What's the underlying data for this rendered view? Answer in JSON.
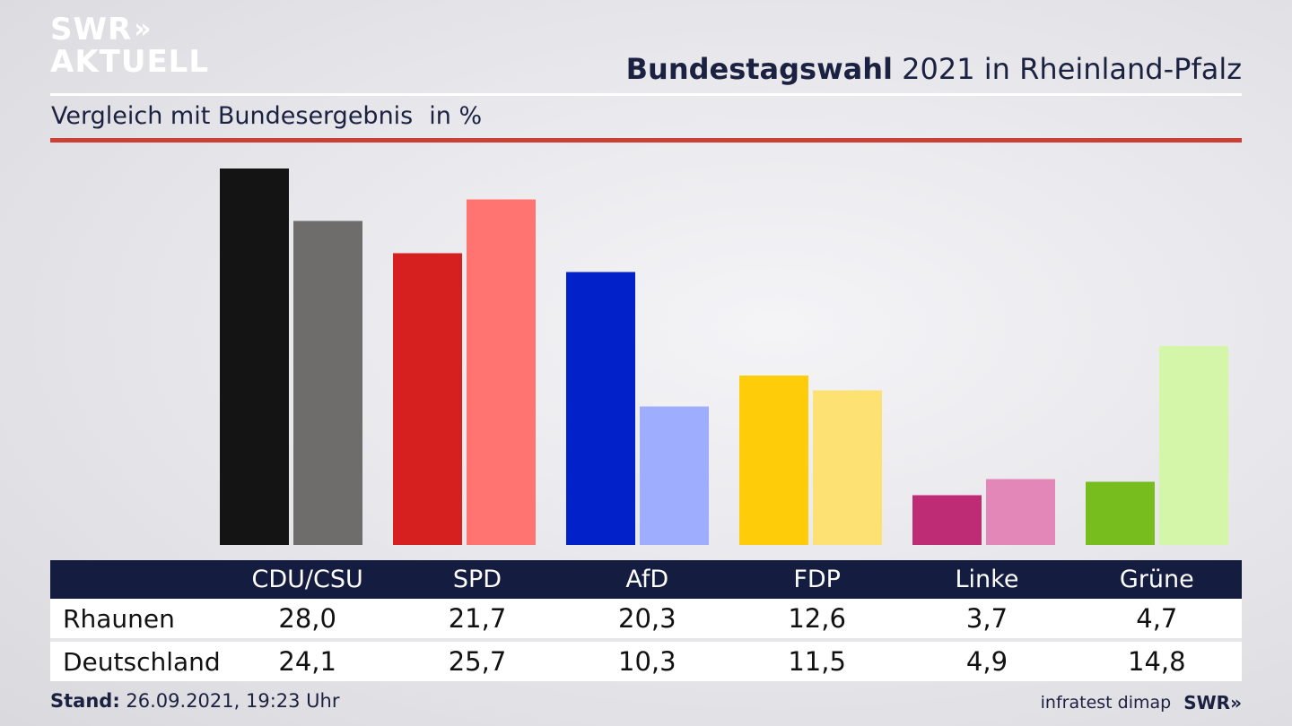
{
  "brand": {
    "line1": "SWR",
    "line1_chevrons": "»",
    "line2": "AKTUELL"
  },
  "header": {
    "title_bold": "Bundestagswahl",
    "title_rest": " 2021 in Rheinland-Pfalz"
  },
  "subtitle": {
    "text": "Vergleich mit Bundesergebnis",
    "unit": "in %"
  },
  "footer": {
    "stand_label": "Stand:",
    "stand_value": " 26.09.2021, 19:23 Uhr",
    "source": "infratest dimap",
    "logo": "SWR»"
  },
  "colors": {
    "rule_red": "#cc3f35",
    "table_header": "#141c3f",
    "CDU/CSU": [
      "#141414",
      "#6f6d6b"
    ],
    "SPD": [
      "#d61f1f",
      "#ff7370"
    ],
    "AfD": [
      "#0321c8",
      "#9fadff"
    ],
    "FDP": [
      "#ffcc0a",
      "#fde173"
    ],
    "Linke": [
      "#bd2c74",
      "#e287b8"
    ],
    "Grüne": [
      "#78bd1e",
      "#d4f6a8"
    ]
  },
  "chart_data": {
    "type": "bar",
    "categories": [
      "CDU/CSU",
      "SPD",
      "AfD",
      "FDP",
      "Linke",
      "Grüne"
    ],
    "series": [
      {
        "name": "Rhaunen",
        "values": [
          28.0,
          21.7,
          20.3,
          12.6,
          3.7,
          4.7
        ],
        "labels": [
          "28,0",
          "21,7",
          "20,3",
          "12,6",
          "3,7",
          "4,7"
        ]
      },
      {
        "name": "Deutschland",
        "values": [
          24.1,
          25.7,
          10.3,
          11.5,
          4.9,
          14.8
        ],
        "labels": [
          "24,1",
          "25,7",
          "10,3",
          "11,5",
          "4,9",
          "14,8"
        ]
      }
    ],
    "title": "Bundestagswahl 2021 in Rheinland-Pfalz",
    "subtitle": "Vergleich mit Bundesergebnis",
    "unit": "in %",
    "ylim": [
      0,
      28
    ],
    "grid": false,
    "legend": "none"
  }
}
